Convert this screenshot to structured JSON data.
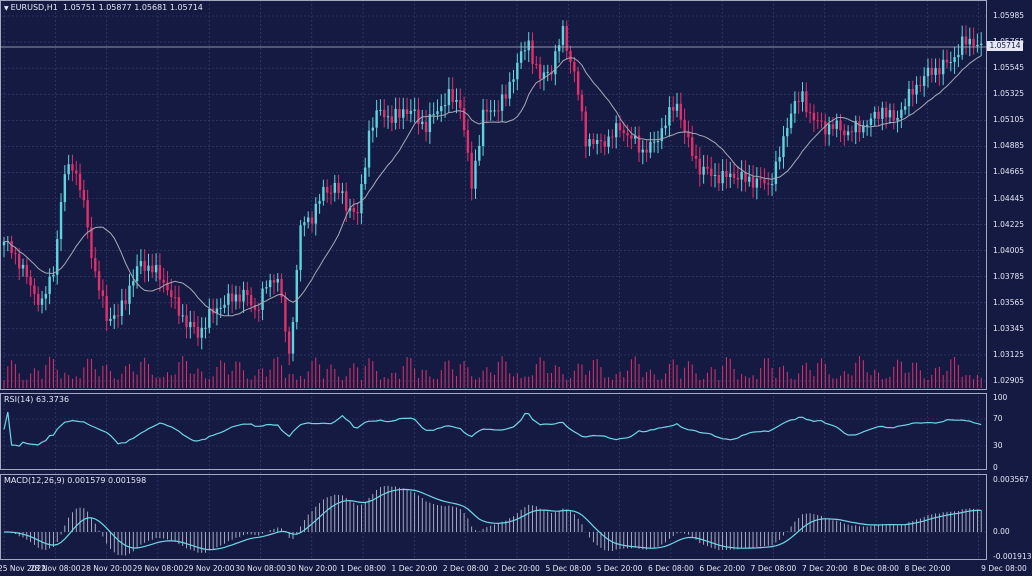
{
  "main_title": {
    "symbol": "EURUSD,H1",
    "ohlc": "1.05751 1.05877 1.05681 1.05714"
  },
  "rsi_title": "RSI(14) 63.3736",
  "macd_title": "MACD(12,26,9) 0.001579 0.001598",
  "colors": {
    "bg": "#141a42",
    "grid": "#3b4470",
    "up": "#5fd4dc",
    "down": "#e1306c",
    "ma": "#a9a9b8",
    "line": "#6fd6e6",
    "hist": "#c9cbe0",
    "text": "#e6e8f5"
  },
  "chart_data": [
    {
      "type": "candlestick",
      "title": "EURUSD,H1",
      "ylim": [
        1.028,
        1.06
      ],
      "yticks": [
        "1.05985",
        "1.05765",
        "1.05545",
        "1.05325",
        "1.05105",
        "1.04885",
        "1.04665",
        "1.04445",
        "1.04225",
        "1.04005",
        "1.03785",
        "1.03565",
        "1.03345",
        "1.03125",
        "1.02905"
      ],
      "last_price": "1.05714",
      "moving_average": true,
      "volume": true,
      "grid": true
    },
    {
      "type": "line",
      "title": "RSI(14) 63.3736",
      "ylim": [
        0,
        100
      ],
      "yticks": [
        "100",
        "70",
        "30",
        "0"
      ],
      "value": 63.3736
    },
    {
      "type": "line",
      "title": "MACD(12,26,9) 0.001579 0.001598",
      "yticks": [
        "0.003567",
        "0.00",
        "-0.001913"
      ],
      "main": 0.001579,
      "signal": 0.001598
    }
  ],
  "xaxis": [
    "25 Nov 2022",
    "28 Nov 08:00",
    "28 Nov 20:00",
    "29 Nov 08:00",
    "29 Nov 20:00",
    "30 Nov 08:00",
    "30 Nov 20:00",
    "1 Dec 08:00",
    "1 Dec 20:00",
    "2 Dec 08:00",
    "2 Dec 20:00",
    "5 Dec 08:00",
    "5 Dec 20:00",
    "6 Dec 08:00",
    "6 Dec 20:00",
    "7 Dec 08:00",
    "7 Dec 20:00",
    "8 Dec 08:00",
    "8 Dec 20:00",
    "9 Dec 08:00"
  ]
}
